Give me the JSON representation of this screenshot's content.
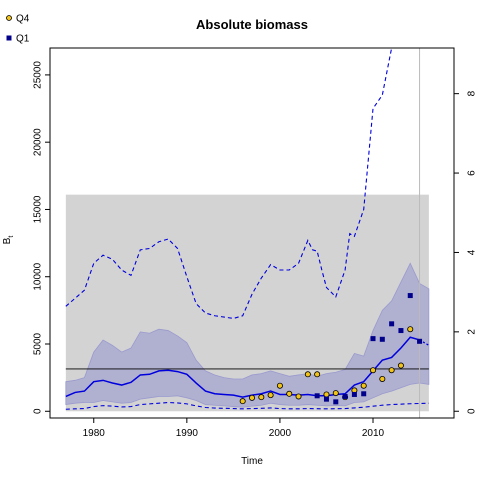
{
  "chart_data": {
    "type": "line",
    "title": "Absolute biomass",
    "xlabel": "Time",
    "ylabel": "B",
    "ylabel_subscript": "t",
    "xlim": [
      1975.3,
      2018.7
    ],
    "ylim": [
      -500,
      27000
    ],
    "y2lim": [
      -0.17,
      9.15
    ],
    "x_ticks": [
      1980,
      1990,
      2000,
      2010
    ],
    "y_ticks": [
      0,
      5000,
      10000,
      15000,
      20000,
      25000
    ],
    "y2_ticks": [
      0,
      2,
      4,
      6,
      8
    ],
    "reference_vline_x": 2015,
    "reference_hline_y": 3150,
    "shaded_region": {
      "x": [
        1977,
        2016
      ],
      "y": [
        0,
        16100
      ],
      "color": "#d3d3d3"
    },
    "colors": {
      "band": "#9a9acf",
      "line": "#0000dd",
      "q4_fill": "#f2c318",
      "q1_fill": "#00008b",
      "ref": "#bbbbbb"
    },
    "legend": [
      {
        "name": "Q4",
        "marker": "circle",
        "color": "#f2c318"
      },
      {
        "name": "Q1",
        "marker": "square",
        "color": "#00008b"
      }
    ],
    "legend_position": "top-left",
    "biomass_x": [
      1977,
      1978,
      1979,
      1980,
      1981,
      1982,
      1983,
      1984,
      1985,
      1986,
      1987,
      1988,
      1989,
      1990,
      1991,
      1992,
      1993,
      1994,
      1995,
      1996,
      1997,
      1998,
      1999,
      2000,
      2001,
      2002,
      2003,
      2004,
      2005,
      2006,
      2007,
      2008,
      2009,
      2010,
      2011,
      2012,
      2013,
      2014,
      2015
    ],
    "biomass_median": [
      1100,
      1400,
      1500,
      2200,
      2300,
      2100,
      1950,
      2150,
      2700,
      2750,
      3000,
      3050,
      2950,
      2750,
      2100,
      1500,
      1300,
      1250,
      1200,
      1050,
      1200,
      1300,
      1500,
      1250,
      1250,
      1200,
      1250,
      1150,
      1150,
      1250,
      1300,
      1950,
      2200,
      3000,
      3800,
      4000,
      4700,
      5500,
      5300
    ],
    "biomass_lower": [
      500,
      600,
      650,
      650,
      800,
      700,
      600,
      650,
      900,
      1000,
      1100,
      1100,
      1150,
      1000,
      800,
      500,
      450,
      400,
      350,
      300,
      380,
      450,
      600,
      500,
      450,
      450,
      500,
      450,
      400,
      430,
      400,
      650,
      700,
      1000,
      1300,
      1500,
      1750,
      2000,
      2100
    ],
    "biomass_upper": [
      2200,
      2300,
      2500,
      4400,
      5300,
      4900,
      4400,
      4700,
      5900,
      5800,
      6100,
      6000,
      5600,
      5100,
      3800,
      3000,
      2700,
      2500,
      2400,
      2400,
      2700,
      2800,
      3000,
      2800,
      2600,
      2700,
      2800,
      2600,
      2800,
      2900,
      3100,
      4300,
      4100,
      6000,
      7500,
      8200,
      9600,
      11000,
      9500
    ],
    "projection": {
      "x": [
        2015,
        2016
      ],
      "median": [
        5300,
        4900
      ],
      "lower": [
        2100,
        2000
      ],
      "upper": [
        9500,
        9100
      ]
    },
    "dashed_upper": {
      "x": [
        1977,
        1978,
        1979,
        1980,
        1981,
        1982,
        1983,
        1984,
        1985,
        1986,
        1987,
        1988,
        1989,
        1990,
        1991,
        1992,
        1993,
        1994,
        1995,
        1996,
        1997,
        1998,
        1999,
        2000,
        2001,
        2002,
        2003,
        2003.5,
        2004,
        2004.5,
        2005,
        2006,
        2007,
        2007.5,
        2008,
        2009,
        2010,
        2011,
        2012
      ],
      "y": [
        7800,
        8400,
        9000,
        11000,
        11600,
        11300,
        10500,
        10100,
        12000,
        12100,
        12600,
        12800,
        12100,
        10000,
        8000,
        7300,
        7100,
        7000,
        6900,
        7100,
        8700,
        9900,
        10900,
        10500,
        10500,
        11000,
        12700,
        12000,
        11900,
        10500,
        9200,
        8500,
        10500,
        13200,
        13000,
        15000,
        22500,
        23500,
        27000
      ]
    },
    "dashed_lower": {
      "x": [
        1977,
        1978,
        1979,
        1980,
        1981,
        1982,
        1983,
        1984,
        1985,
        1986,
        1987,
        1988,
        1989,
        1990,
        1991,
        1992,
        1993,
        1994,
        1995,
        1996,
        1997,
        1998,
        1999,
        2000,
        2001,
        2002,
        2003,
        2004,
        2005,
        2006,
        2007,
        2008,
        2009,
        2010,
        2011,
        2012,
        2013,
        2014,
        2015,
        2016
      ],
      "y": [
        150,
        180,
        200,
        350,
        420,
        380,
        320,
        350,
        500,
        550,
        600,
        650,
        620,
        550,
        400,
        280,
        240,
        220,
        200,
        180,
        200,
        220,
        250,
        200,
        180,
        180,
        200,
        190,
        180,
        190,
        200,
        250,
        300,
        380,
        450,
        500,
        530,
        560,
        580,
        600
      ]
    },
    "q4_points": {
      "x": [
        1996,
        1997,
        1998,
        1999,
        2000,
        2001,
        2002,
        2003,
        2004,
        2005,
        2006,
        2007,
        2008,
        2009,
        2010,
        2011,
        2012,
        2013,
        2014
      ],
      "y": [
        750,
        1000,
        1050,
        1200,
        1900,
        1300,
        1100,
        2750,
        2750,
        1250,
        1350,
        1050,
        1550,
        1900,
        3050,
        2400,
        3050,
        3400,
        6100
      ]
    },
    "q1_points": {
      "x": [
        2004,
        2005,
        2006,
        2007,
        2008,
        2009,
        2010,
        2011,
        2012,
        2013,
        2014,
        2015
      ],
      "y": [
        1150,
        900,
        700,
        1100,
        1250,
        1300,
        5400,
        5350,
        6500,
        6000,
        8600,
        5200
      ]
    }
  }
}
